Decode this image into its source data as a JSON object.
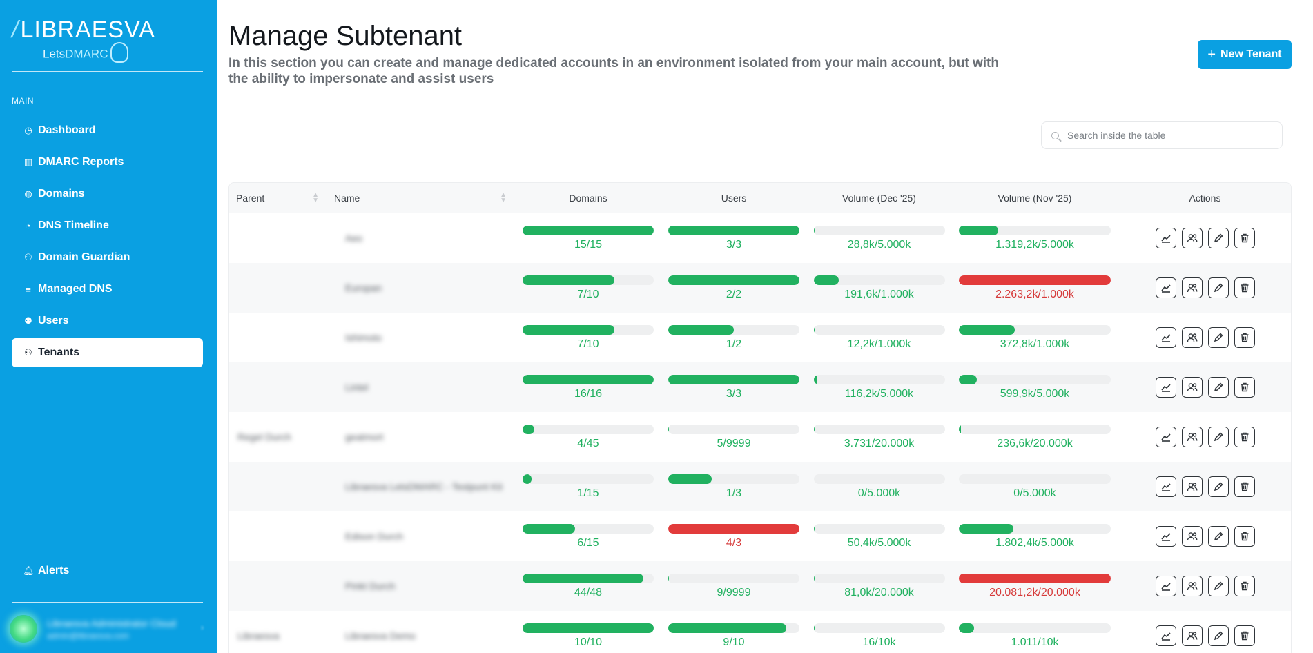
{
  "brand": {
    "name": "LIBRAESVA",
    "sub_prefix": "Lets",
    "sub_accent": "DMARC"
  },
  "sidebar": {
    "section": "MAIN",
    "items": [
      {
        "label": "Dashboard",
        "icon": "dashboard-icon",
        "active": false
      },
      {
        "label": "DMARC Reports",
        "icon": "bar-chart-icon",
        "active": false
      },
      {
        "label": "Domains",
        "icon": "globe-icon",
        "active": false
      },
      {
        "label": "DNS Timeline",
        "icon": "clock-icon",
        "active": false
      },
      {
        "label": "Domain Guardian",
        "icon": "guardian-icon",
        "active": false
      },
      {
        "label": "Managed DNS",
        "icon": "database-icon",
        "active": false
      },
      {
        "label": "Users",
        "icon": "users-icon",
        "active": false
      },
      {
        "label": "Tenants",
        "icon": "tenants-icon",
        "active": true
      }
    ],
    "alerts_label": "Alerts",
    "user": {
      "name": "Libraesva Administrator Cloud",
      "email": "admin@libraesva.com"
    }
  },
  "header": {
    "title": "Manage Subtenant",
    "description": "In this section you can create and manage dedicated accounts in an environment isolated from your main account, but with the ability to impersonate and assist users",
    "new_button_label": "New Tenant"
  },
  "search": {
    "placeholder": "Search inside the table"
  },
  "colors": {
    "accent": "#0aa0e2",
    "ok": "#21b160",
    "over": "#e23b3b",
    "track": "#eeeff0"
  },
  "table": {
    "columns": [
      "Parent",
      "Name",
      "Domains",
      "Users",
      "Volume (Dec '25)",
      "Volume (Nov '25)",
      "Actions"
    ],
    "rows": [
      {
        "parent": "",
        "name": "Aeo",
        "domains": {
          "label": "15/15",
          "pct": 100,
          "over": false
        },
        "users": {
          "label": "3/3",
          "pct": 100,
          "over": false
        },
        "vol_dec": {
          "label": "28,8k/5.000k",
          "pct": 0.6,
          "over": false
        },
        "vol_nov": {
          "label": "1.319,2k/5.000k",
          "pct": 26,
          "over": false
        }
      },
      {
        "parent": "",
        "name": "Europan",
        "domains": {
          "label": "7/10",
          "pct": 70,
          "over": false
        },
        "users": {
          "label": "2/2",
          "pct": 100,
          "over": false
        },
        "vol_dec": {
          "label": "191,6k/1.000k",
          "pct": 19,
          "over": false
        },
        "vol_nov": {
          "label": "2.263,2k/1.000k",
          "pct": 100,
          "over": true
        }
      },
      {
        "parent": "",
        "name": "Ishimoto",
        "domains": {
          "label": "7/10",
          "pct": 70,
          "over": false
        },
        "users": {
          "label": "1/2",
          "pct": 50,
          "over": false
        },
        "vol_dec": {
          "label": "12,2k/1.000k",
          "pct": 1.2,
          "over": false
        },
        "vol_nov": {
          "label": "372,8k/1.000k",
          "pct": 37,
          "over": false
        }
      },
      {
        "parent": "",
        "name": "Lintel",
        "domains": {
          "label": "16/16",
          "pct": 100,
          "over": false
        },
        "users": {
          "label": "3/3",
          "pct": 100,
          "over": false
        },
        "vol_dec": {
          "label": "116,2k/5.000k",
          "pct": 2.3,
          "over": false
        },
        "vol_nov": {
          "label": "599,9k/5.000k",
          "pct": 12,
          "over": false
        }
      },
      {
        "parent": "Regel Durch",
        "name": "geatmort",
        "domains": {
          "label": "4/45",
          "pct": 9,
          "over": false
        },
        "users": {
          "label": "5/9999",
          "pct": 0.05,
          "over": false
        },
        "vol_dec": {
          "label": "3.731/20.000k",
          "pct": 0.02,
          "over": false
        },
        "vol_nov": {
          "label": "236,6k/20.000k",
          "pct": 1.2,
          "over": false
        }
      },
      {
        "parent": "",
        "name": "Libraesva LetsDMARC - Testpunt Kit",
        "domains": {
          "label": "1/15",
          "pct": 6.7,
          "over": false
        },
        "users": {
          "label": "1/3",
          "pct": 33,
          "over": false
        },
        "vol_dec": {
          "label": "0/5.000k",
          "pct": 0,
          "over": false
        },
        "vol_nov": {
          "label": "0/5.000k",
          "pct": 0,
          "over": false
        }
      },
      {
        "parent": "",
        "name": "Edison Durch",
        "domains": {
          "label": "6/15",
          "pct": 40,
          "over": false
        },
        "users": {
          "label": "4/3",
          "pct": 100,
          "over": true
        },
        "vol_dec": {
          "label": "50,4k/5.000k",
          "pct": 1,
          "over": false
        },
        "vol_nov": {
          "label": "1.802,4k/5.000k",
          "pct": 36,
          "over": false
        }
      },
      {
        "parent": "",
        "name": "Pinkt Durch",
        "domains": {
          "label": "44/48",
          "pct": 92,
          "over": false
        },
        "users": {
          "label": "9/9999",
          "pct": 0.09,
          "over": false
        },
        "vol_dec": {
          "label": "81,0k/20.000k",
          "pct": 0.4,
          "over": false
        },
        "vol_nov": {
          "label": "20.081,2k/20.000k",
          "pct": 100,
          "over": true
        }
      },
      {
        "parent": "Libraesva",
        "name": "Libraesva Demo",
        "domains": {
          "label": "10/10",
          "pct": 100,
          "over": false
        },
        "users": {
          "label": "9/10",
          "pct": 90,
          "over": false
        },
        "vol_dec": {
          "label": "16/10k",
          "pct": 0.16,
          "over": false
        },
        "vol_nov": {
          "label": "1.011/10k",
          "pct": 10,
          "over": false
        }
      }
    ],
    "action_icons": [
      "chart-icon",
      "impersonate-icon",
      "edit-icon",
      "delete-icon"
    ]
  }
}
